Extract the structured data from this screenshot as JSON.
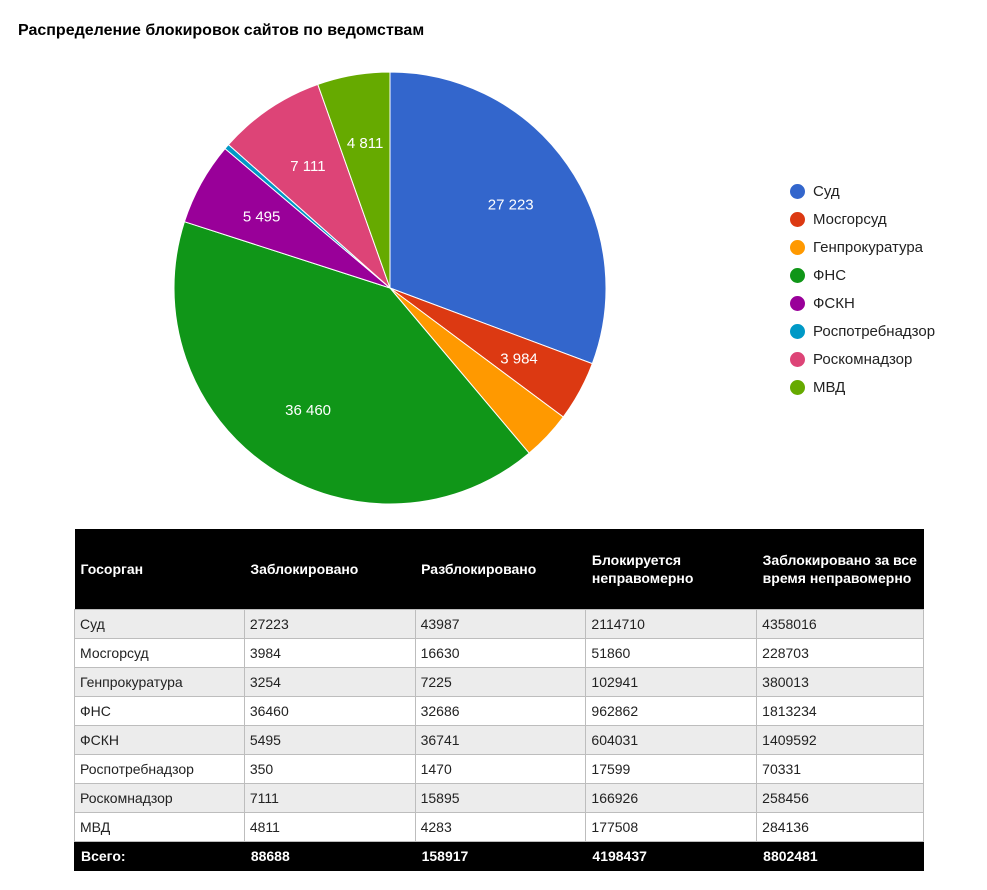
{
  "chart_data": {
    "type": "pie",
    "title": "Распределение блокировок сайтов по ведомствам",
    "slices": [
      {
        "label": "Суд",
        "value": 27223,
        "display": "27 223",
        "color": "#3366cc"
      },
      {
        "label": "Мосгорсуд",
        "value": 3984,
        "display": "3 984",
        "color": "#dc3912"
      },
      {
        "label": "Генпрокуратура",
        "value": 3254,
        "display": "",
        "color": "#ff9900"
      },
      {
        "label": "ФНС",
        "value": 36460,
        "display": "36 460",
        "color": "#109618"
      },
      {
        "label": "ФСКН",
        "value": 5495,
        "display": "5 495",
        "color": "#990099"
      },
      {
        "label": "Роспотребнадзор",
        "value": 350,
        "display": "",
        "color": "#0099c6"
      },
      {
        "label": "Роскомнадзор",
        "value": 7111,
        "display": "7 111",
        "color": "#dd4477"
      },
      {
        "label": "МВД",
        "value": 4811,
        "display": "4 811",
        "color": "#66aa00"
      }
    ],
    "legend": "right"
  },
  "table": {
    "headers": [
      "Госорган",
      "Заблокировано",
      "Разблокировано",
      "Блокируется неправомерно",
      "Заблокировано за все время неправомерно"
    ],
    "rows": [
      [
        "Суд",
        "27223",
        "43987",
        "2114710",
        "4358016"
      ],
      [
        "Мосгорсуд",
        "3984",
        "16630",
        "51860",
        "228703"
      ],
      [
        "Генпрокуратура",
        "3254",
        "7225",
        "102941",
        "380013"
      ],
      [
        "ФНС",
        "36460",
        "32686",
        "962862",
        "1813234"
      ],
      [
        "ФСКН",
        "5495",
        "36741",
        "604031",
        "1409592"
      ],
      [
        "Роспотребнадзор",
        "350",
        "1470",
        "17599",
        "70331"
      ],
      [
        "Роскомнадзор",
        "7111",
        "15895",
        "166926",
        "258456"
      ],
      [
        "МВД",
        "4811",
        "4283",
        "177508",
        "284136"
      ]
    ],
    "total": [
      "Всего:",
      "88688",
      "158917",
      "4198437",
      "8802481"
    ]
  }
}
